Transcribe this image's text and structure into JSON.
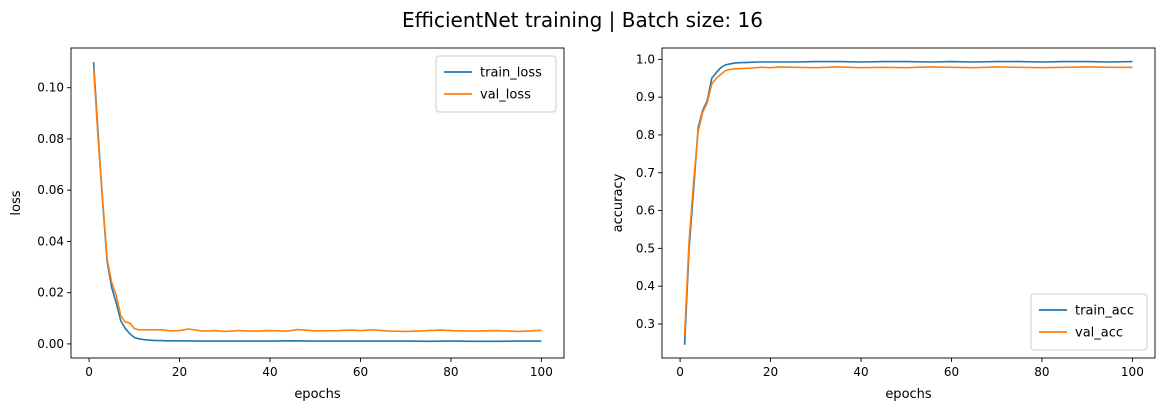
{
  "figure": {
    "title": "EfficientNet training | Batch size: 16"
  },
  "colors": {
    "train": "#1f77b4",
    "val": "#ff7f0e"
  },
  "chart_data": [
    {
      "type": "line",
      "xlabel": "epochs",
      "ylabel": "loss",
      "xlim": [
        -4,
        105
      ],
      "ylim": [
        -0.0055,
        0.1155
      ],
      "xticks": [
        0,
        20,
        40,
        60,
        80,
        100
      ],
      "yticks": [
        0.0,
        0.02,
        0.04,
        0.06,
        0.08,
        0.1
      ],
      "ytick_labels": [
        "0.00",
        "0.02",
        "0.04",
        "0.06",
        "0.08",
        "0.10"
      ],
      "legend": "top-right",
      "series": [
        {
          "name": "train_loss",
          "color": "#1f77b4",
          "x": [
            1,
            2,
            3,
            4,
            5,
            6,
            7,
            8,
            9,
            10,
            11,
            12,
            13,
            14,
            15,
            16,
            17,
            18,
            19,
            20,
            25,
            30,
            35,
            40,
            45,
            50,
            55,
            60,
            65,
            70,
            75,
            80,
            85,
            90,
            95,
            100
          ],
          "y": [
            0.11,
            0.082,
            0.055,
            0.032,
            0.022,
            0.016,
            0.009,
            0.006,
            0.004,
            0.0025,
            0.002,
            0.0017,
            0.0015,
            0.0014,
            0.0013,
            0.0013,
            0.0012,
            0.0012,
            0.0012,
            0.0012,
            0.0011,
            0.0011,
            0.0011,
            0.0011,
            0.0012,
            0.0011,
            0.0011,
            0.0011,
            0.0011,
            0.0011,
            0.001,
            0.0011,
            0.001,
            0.001,
            0.0011,
            0.0011
          ]
        },
        {
          "name": "val_loss",
          "color": "#ff7f0e",
          "x": [
            1,
            2,
            3,
            4,
            5,
            6,
            7,
            8,
            9,
            10,
            11,
            12,
            14,
            16,
            18,
            20,
            22,
            25,
            28,
            30,
            33,
            36,
            40,
            44,
            46,
            50,
            55,
            58,
            60,
            63,
            66,
            70,
            75,
            78,
            80,
            85,
            90,
            95,
            100
          ],
          "y": [
            0.108,
            0.08,
            0.056,
            0.033,
            0.024,
            0.019,
            0.011,
            0.0085,
            0.0082,
            0.006,
            0.0055,
            0.0055,
            0.0055,
            0.0055,
            0.0051,
            0.0052,
            0.0058,
            0.005,
            0.0052,
            0.0049,
            0.0052,
            0.005,
            0.0052,
            0.005,
            0.0056,
            0.0051,
            0.0052,
            0.0054,
            0.0052,
            0.0055,
            0.005,
            0.0049,
            0.0052,
            0.0054,
            0.0052,
            0.005,
            0.0052,
            0.0049,
            0.0053
          ]
        }
      ]
    },
    {
      "type": "line",
      "xlabel": "epochs",
      "ylabel": "accuracy",
      "xlim": [
        -4,
        105
      ],
      "ylim": [
        0.21,
        1.03
      ],
      "xticks": [
        0,
        20,
        40,
        60,
        80,
        100
      ],
      "yticks": [
        0.3,
        0.4,
        0.5,
        0.6,
        0.7,
        0.8,
        0.9,
        1.0
      ],
      "ytick_labels": [
        "0.3",
        "0.4",
        "0.5",
        "0.6",
        "0.7",
        "0.8",
        "0.9",
        "1.0"
      ],
      "legend": "bottom-right",
      "series": [
        {
          "name": "train_acc",
          "color": "#1f77b4",
          "x": [
            1,
            2,
            3,
            4,
            5,
            6,
            7,
            8,
            9,
            10,
            11,
            12,
            13,
            15,
            17,
            20,
            25,
            30,
            35,
            40,
            45,
            50,
            55,
            60,
            65,
            70,
            75,
            80,
            85,
            90,
            95,
            100
          ],
          "y": [
            0.245,
            0.5,
            0.66,
            0.82,
            0.865,
            0.89,
            0.95,
            0.965,
            0.978,
            0.985,
            0.988,
            0.99,
            0.991,
            0.992,
            0.993,
            0.993,
            0.993,
            0.994,
            0.994,
            0.993,
            0.994,
            0.994,
            0.993,
            0.994,
            0.993,
            0.994,
            0.994,
            0.993,
            0.994,
            0.994,
            0.993,
            0.994
          ]
        },
        {
          "name": "val_acc",
          "color": "#ff7f0e",
          "x": [
            1,
            2,
            3,
            4,
            5,
            6,
            7,
            8,
            9,
            10,
            11,
            12,
            14,
            16,
            18,
            20,
            22,
            25,
            30,
            35,
            40,
            45,
            50,
            55,
            60,
            65,
            70,
            75,
            80,
            85,
            90,
            95,
            100
          ],
          "y": [
            0.27,
            0.52,
            0.68,
            0.81,
            0.86,
            0.885,
            0.935,
            0.95,
            0.96,
            0.97,
            0.973,
            0.975,
            0.976,
            0.977,
            0.979,
            0.978,
            0.98,
            0.979,
            0.978,
            0.98,
            0.978,
            0.979,
            0.978,
            0.98,
            0.979,
            0.978,
            0.98,
            0.979,
            0.978,
            0.979,
            0.98,
            0.979,
            0.979
          ]
        }
      ]
    }
  ]
}
